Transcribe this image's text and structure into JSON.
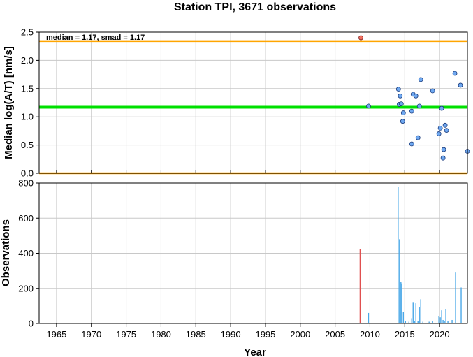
{
  "title": "Station TPI, 3671 observations",
  "colors": {
    "reference_line": "#FFA500",
    "median_line": "#00E000",
    "point_fill": "#6FA8F0",
    "highlight_fill": "#F07060",
    "bar": "#4AA8E8",
    "highlight_bar": "#E05050",
    "grid": "#c8c8c8"
  },
  "chart_data": [
    {
      "type": "scatter",
      "ylabel": "Median log(A/T) [nm/s]",
      "annotation": "median = 1.17, smad = 1.17",
      "xlim": [
        1962.5,
        2024
      ],
      "ylim": [
        0,
        2.5
      ],
      "yticks": [
        "0.0",
        "0.5",
        "1.0",
        "1.5",
        "2.0",
        "2.5"
      ],
      "grid": true,
      "median": 1.17,
      "reference_lines": [
        0,
        2.34
      ],
      "highlight_point": {
        "x": 2008.7,
        "y": 2.4
      },
      "points": [
        [
          2009.8,
          1.19
        ],
        [
          2014.1,
          1.49
        ],
        [
          2014.2,
          1.22
        ],
        [
          2014.35,
          1.37
        ],
        [
          2014.5,
          1.23
        ],
        [
          2014.7,
          0.92
        ],
        [
          2014.8,
          1.07
        ],
        [
          2016.0,
          1.1
        ],
        [
          2016.0,
          0.52
        ],
        [
          2016.2,
          1.4
        ],
        [
          2016.6,
          1.37
        ],
        [
          2016.9,
          0.63
        ],
        [
          2017.1,
          1.19
        ],
        [
          2017.3,
          1.66
        ],
        [
          2019.0,
          1.46
        ],
        [
          2019.9,
          0.7
        ],
        [
          2020.1,
          0.8
        ],
        [
          2020.3,
          1.15
        ],
        [
          2020.5,
          0.27
        ],
        [
          2020.6,
          0.42
        ],
        [
          2020.8,
          0.85
        ],
        [
          2021.0,
          0.76
        ],
        [
          2022.2,
          1.77
        ],
        [
          2023.0,
          1.56
        ],
        [
          2024.0,
          0.39
        ]
      ]
    },
    {
      "type": "bar",
      "ylabel": "Observations",
      "xlabel": "Year",
      "xlim": [
        1962.5,
        2024
      ],
      "ylim": [
        0,
        800
      ],
      "yticks": [
        "0",
        "200",
        "400",
        "600",
        "800"
      ],
      "xticks": [
        "1965",
        "1970",
        "1975",
        "1980",
        "1985",
        "1990",
        "1995",
        "2000",
        "2005",
        "2010",
        "2015",
        "2020"
      ],
      "grid": true,
      "highlight_bar": {
        "x": 2008.6,
        "value": 425
      },
      "bars": [
        [
          2009.8,
          60
        ],
        [
          2014.05,
          780
        ],
        [
          2014.25,
          480
        ],
        [
          2014.45,
          235
        ],
        [
          2014.6,
          228
        ],
        [
          2014.8,
          65
        ],
        [
          2015.1,
          15
        ],
        [
          2015.6,
          10
        ],
        [
          2016.0,
          30
        ],
        [
          2016.2,
          122
        ],
        [
          2016.4,
          12
        ],
        [
          2016.6,
          115
        ],
        [
          2016.9,
          15
        ],
        [
          2017.1,
          95
        ],
        [
          2017.3,
          138
        ],
        [
          2017.6,
          10
        ],
        [
          2018.5,
          10
        ],
        [
          2019.0,
          15
        ],
        [
          2019.9,
          40
        ],
        [
          2020.1,
          35
        ],
        [
          2020.3,
          75
        ],
        [
          2020.5,
          20
        ],
        [
          2020.7,
          15
        ],
        [
          2020.9,
          80
        ],
        [
          2021.2,
          15
        ],
        [
          2021.8,
          20
        ],
        [
          2022.3,
          290
        ],
        [
          2023.1,
          205
        ]
      ]
    }
  ]
}
